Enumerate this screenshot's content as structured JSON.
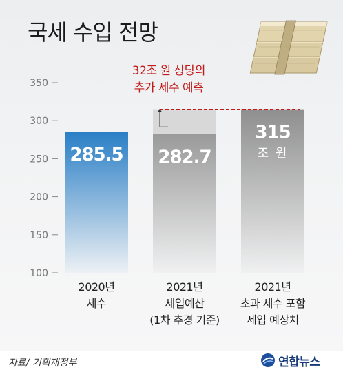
{
  "title": "국세 수입 전망",
  "source": "자료/ 기획재정부",
  "logo_text": "연합뉴스",
  "colors": {
    "bar_2020": "#2a7fc6",
    "bar_gray": "#9a9a9a",
    "bar_light": "#d8d8d8",
    "annotation_red": "#c21a1a"
  },
  "chart_data": {
    "type": "bar",
    "ylim": [
      100,
      350
    ],
    "yticks": [
      "100",
      "150",
      "200",
      "250",
      "300",
      "350"
    ],
    "categories": [
      [
        "2020년",
        "세수"
      ],
      [
        "2021년",
        "세입예산",
        "(1차 추경 기준)"
      ],
      [
        "2021년",
        "초과 세수 포함",
        "세입 예상치"
      ]
    ],
    "values": [
      285.5,
      282.7,
      315
    ],
    "value_labels": [
      "285.5",
      "282.7",
      "315"
    ],
    "value_unit": "조 원",
    "annotation": {
      "lines": [
        "32조 원 상당의",
        "추가 세수 예측"
      ],
      "from_value": 282.7,
      "to_value": 315
    }
  }
}
